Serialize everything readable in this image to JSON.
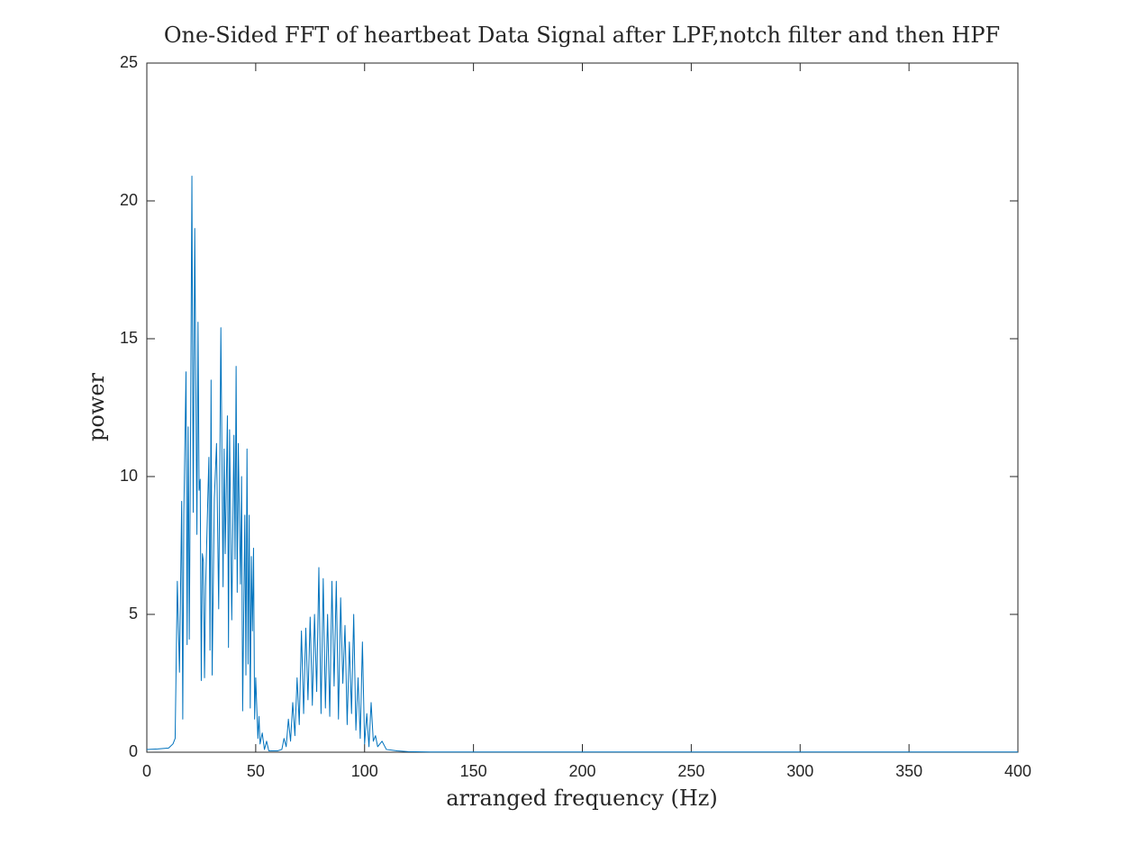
{
  "chart_data": {
    "type": "line",
    "title": "One-Sided FFT of heartbeat Data Signal after LPF,notch filter and then HPF",
    "xlabel": "arranged frequency (Hz)",
    "ylabel": "power",
    "x": [
      0,
      5,
      10,
      12,
      13,
      14,
      15,
      16,
      16.5,
      17,
      18,
      18.5,
      19,
      19.5,
      20,
      20.7,
      21.3,
      22,
      23,
      23.5,
      24,
      24.5,
      25,
      25.5,
      26,
      26.5,
      27,
      28,
      28.5,
      29,
      29.5,
      30,
      31,
      32,
      33,
      34,
      35,
      35.5,
      36,
      37,
      37.5,
      38,
      39,
      40,
      40.5,
      41,
      41.5,
      42,
      43,
      43.5,
      44,
      45,
      45.5,
      46,
      46.5,
      47,
      47.5,
      48,
      48.5,
      49,
      49.5,
      50,
      51,
      51.5,
      52,
      53,
      54,
      55,
      56,
      60,
      62,
      63,
      64,
      65,
      66,
      67,
      68,
      69,
      70,
      71,
      72,
      73,
      74,
      75,
      76,
      77,
      78,
      79,
      80,
      81,
      82,
      83,
      84,
      85,
      86,
      87,
      88,
      89,
      90,
      91,
      92,
      93,
      94,
      95,
      96,
      97,
      98,
      99,
      100,
      101,
      102,
      103,
      104,
      105,
      106,
      108,
      110,
      115,
      120,
      130,
      400
    ],
    "series": [
      {
        "color": "#0072bd",
        "values": [
          0.1,
          0.12,
          0.15,
          0.3,
          0.5,
          6.2,
          2.9,
          9.1,
          1.2,
          8.7,
          13.8,
          3.9,
          11.8,
          4.1,
          10.4,
          20.9,
          8.7,
          19.0,
          7.9,
          15.6,
          9.5,
          9.9,
          2.6,
          7.2,
          6.9,
          2.7,
          6.0,
          9.2,
          10.7,
          3.7,
          13.5,
          2.8,
          9.2,
          11.2,
          5.2,
          15.4,
          6.0,
          11.0,
          7.2,
          12.2,
          3.8,
          11.7,
          4.8,
          11.5,
          7.0,
          14.0,
          5.8,
          11.2,
          6.1,
          10.0,
          1.5,
          8.6,
          2.8,
          11.0,
          3.2,
          8.6,
          1.6,
          7.1,
          4.4,
          7.4,
          1.2,
          2.7,
          0.5,
          1.3,
          0.3,
          0.7,
          0.1,
          0.4,
          0.05,
          0.05,
          0.1,
          0.5,
          0.2,
          1.2,
          0.4,
          1.8,
          0.6,
          2.7,
          1.0,
          4.4,
          1.4,
          4.5,
          1.9,
          4.9,
          1.7,
          5.0,
          2.2,
          6.7,
          1.4,
          6.3,
          1.6,
          5.0,
          1.3,
          6.2,
          2.4,
          6.2,
          1.2,
          5.6,
          2.5,
          4.6,
          1.0,
          4.0,
          1.4,
          5.0,
          0.8,
          2.7,
          0.5,
          4.0,
          0.3,
          1.4,
          0.2,
          1.8,
          0.4,
          0.6,
          0.2,
          0.4,
          0.1,
          0.05,
          0.02,
          0.01,
          0.01
        ]
      }
    ],
    "xlim": [
      0,
      400
    ],
    "xticks": [
      0,
      50,
      100,
      150,
      200,
      250,
      300,
      350,
      400
    ],
    "ylim": [
      0,
      25
    ],
    "yticks": [
      0,
      5,
      10,
      15,
      20,
      25
    ],
    "grid": false
  }
}
